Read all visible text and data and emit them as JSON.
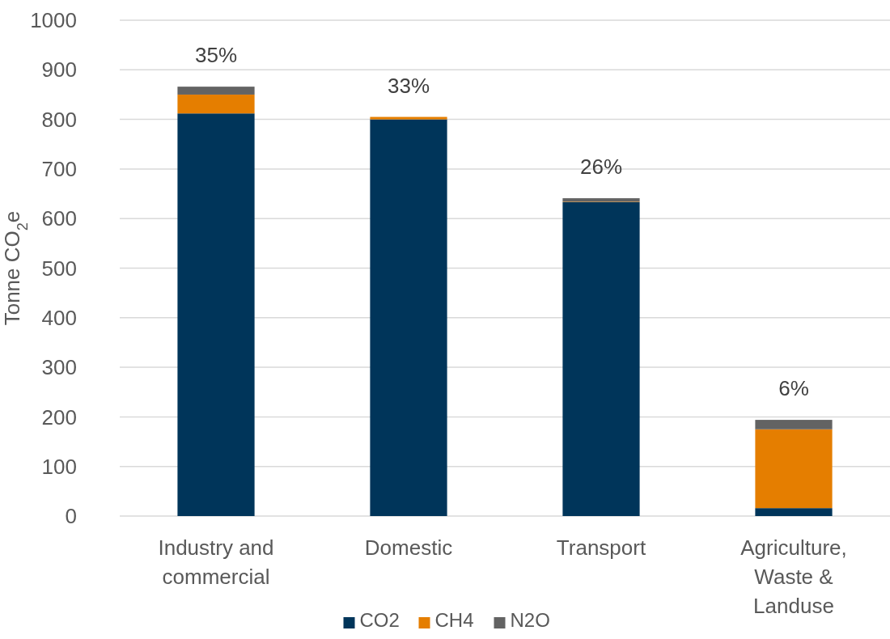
{
  "chart_data": {
    "type": "bar",
    "stacked": true,
    "ylabel": "Tonne CO$_{2}$e",
    "categories": [
      "Industry and commercial",
      "Domestic",
      "Transport",
      "Agriculture, Waste & Landuse"
    ],
    "series": [
      {
        "name": "CO2",
        "color": "#00355a",
        "values": [
          812,
          800,
          633,
          16
        ]
      },
      {
        "name": "CH4",
        "color": "#e57e00",
        "values": [
          38,
          5,
          1,
          159
        ]
      },
      {
        "name": "N2O",
        "color": "#636363",
        "values": [
          16,
          0,
          7,
          19
        ]
      }
    ],
    "annotations": [
      {
        "text": "35%",
        "x": "Industry and commercial",
        "y": 866
      },
      {
        "text": "33%",
        "x": "Domestic",
        "y": 805
      },
      {
        "text": "26%",
        "x": "Transport",
        "y": 641
      },
      {
        "text": "6%",
        "x": "Agriculture, Waste & Landuse",
        "y": 194
      }
    ],
    "ylim": [
      0,
      1000
    ],
    "yticks": [
      0,
      100,
      200,
      300,
      400,
      500,
      600,
      700,
      800,
      900,
      1000
    ],
    "grid": "y",
    "legend": "bottom"
  }
}
